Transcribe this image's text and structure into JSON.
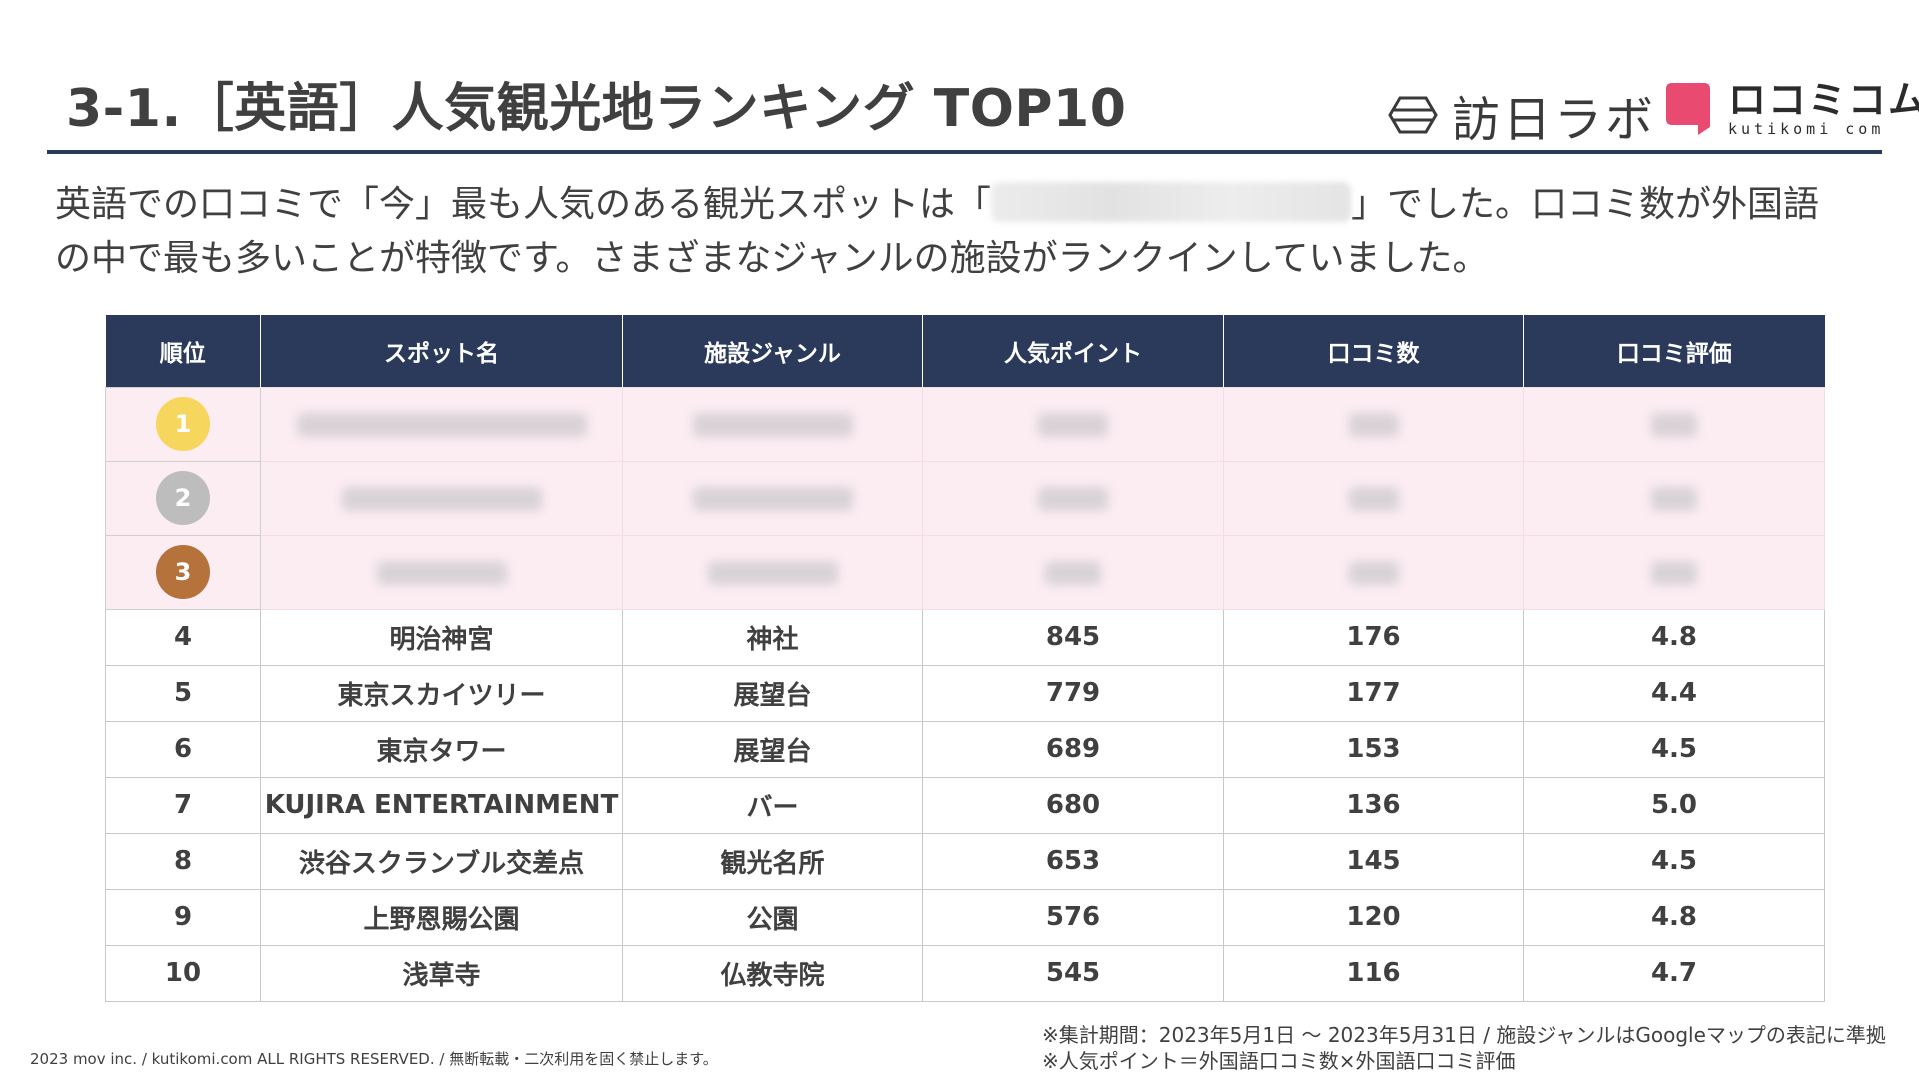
{
  "title": "3-1.［英語］人気観光地ランキング TOP10",
  "logos": {
    "hounichi": {
      "text": "訪日ラボ",
      "icon": "hexagon-logo-icon"
    },
    "kutikomi": {
      "name": "ロコミコム",
      "sub": "kutikomi com",
      "icon": "speech-bubble-logo-icon",
      "color": "#e94a6f"
    }
  },
  "description": {
    "before": "英語での口コミで「今」最も人気のある観光スポットは「",
    "after": "」でした。口コミ数が外国語の中で最も多いことが特徴です。さまざまなジャンルの施設がランクインしていました。"
  },
  "table": {
    "headers": [
      "順位",
      "スポット名",
      "施設ジャンル",
      "人気ポイント",
      "口コミ数",
      "口コミ評価"
    ],
    "top3": [
      {
        "rank": "1",
        "medal_color": "#f7d65e"
      },
      {
        "rank": "2",
        "medal_color": "#bdbdbd"
      },
      {
        "rank": "3",
        "medal_color": "#b5723a"
      }
    ],
    "rows": [
      {
        "rank": "4",
        "spot": "明治神宮",
        "genre": "神社",
        "points": "845",
        "reviews": "176",
        "rating": "4.8"
      },
      {
        "rank": "5",
        "spot": "東京スカイツリー",
        "genre": "展望台",
        "points": "779",
        "reviews": "177",
        "rating": "4.4"
      },
      {
        "rank": "6",
        "spot": "東京タワー",
        "genre": "展望台",
        "points": "689",
        "reviews": "153",
        "rating": "4.5"
      },
      {
        "rank": "7",
        "spot": "KUJIRA ENTERTAINMENT",
        "genre": "バー",
        "points": "680",
        "reviews": "136",
        "rating": "5.0"
      },
      {
        "rank": "8",
        "spot": "渋谷スクランブル交差点",
        "genre": "観光名所",
        "points": "653",
        "reviews": "145",
        "rating": "4.5"
      },
      {
        "rank": "9",
        "spot": "上野恩賜公園",
        "genre": "公園",
        "points": "576",
        "reviews": "120",
        "rating": "4.8"
      },
      {
        "rank": "10",
        "spot": "浅草寺",
        "genre": "仏教寺院",
        "points": "545",
        "reviews": "116",
        "rating": "4.7"
      }
    ]
  },
  "notes": [
    "※集計期間：2023年5月1日 〜 2023年5月31日 / 施設ジャンルはGoogleマップの表記に準拠",
    "※人気ポイント＝外国語口コミ数×外国語口コミ評価"
  ],
  "copyright": "2023 mov inc. / kutikomi.com ALL RIGHTS RESERVED. / 無断転載・二次利用を固く禁止します。",
  "colors": {
    "header_bg": "#2b3a5a",
    "top3_bg": "#fcedf3",
    "rule": "#2b3a5a"
  }
}
